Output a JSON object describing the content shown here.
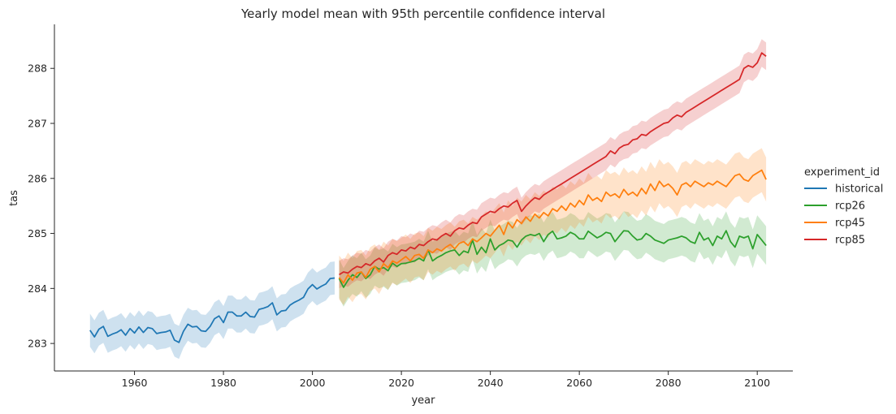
{
  "chart_data": {
    "type": "line",
    "title": "Yearly model mean with 95th percentile confidence interval",
    "xlabel": "year",
    "ylabel": "tas",
    "xlim": [
      1942,
      2108
    ],
    "ylim": [
      282.5,
      288.8
    ],
    "x_ticks": [
      1960,
      1980,
      2000,
      2020,
      2040,
      2060,
      2080,
      2100
    ],
    "y_ticks": [
      283,
      284,
      285,
      286,
      287,
      288
    ],
    "grid": false,
    "legend": {
      "title": "experiment_id",
      "placement": "right"
    },
    "confidence_band": "95% CI",
    "series": [
      {
        "name": "historical",
        "color": "#1f77b4",
        "x_start": 1950,
        "values": [
          283.24,
          283.12,
          283.26,
          283.31,
          283.13,
          283.17,
          283.2,
          283.25,
          283.15,
          283.27,
          283.19,
          283.3,
          283.2,
          283.29,
          283.27,
          283.18,
          283.2,
          283.21,
          283.24,
          283.06,
          283.02,
          283.22,
          283.35,
          283.3,
          283.31,
          283.23,
          283.22,
          283.31,
          283.45,
          283.5,
          283.38,
          283.57,
          283.57,
          283.5,
          283.5,
          283.57,
          283.49,
          283.48,
          283.62,
          283.64,
          283.67,
          283.74,
          283.52,
          283.59,
          283.6,
          283.7,
          283.75,
          283.79,
          283.84,
          283.99,
          284.07,
          283.99,
          284.04,
          284.08,
          284.18,
          284.19
        ],
        "ci_half_width": 0.3
      },
      {
        "name": "rcp26",
        "color": "#2ca02c",
        "x_start": 2006,
        "values": [
          284.18,
          284.02,
          284.15,
          284.25,
          284.2,
          284.3,
          284.18,
          284.25,
          284.4,
          284.35,
          284.38,
          284.32,
          284.46,
          284.4,
          284.45,
          284.46,
          284.48,
          284.5,
          284.55,
          284.5,
          284.7,
          284.5,
          284.56,
          284.6,
          284.65,
          284.68,
          284.7,
          284.6,
          284.68,
          284.65,
          284.88,
          284.62,
          284.75,
          284.65,
          284.9,
          284.7,
          284.78,
          284.82,
          284.88,
          284.86,
          284.75,
          284.88,
          284.95,
          284.98,
          284.96,
          285,
          284.85,
          284.98,
          285.04,
          284.9,
          284.92,
          284.95,
          285.02,
          284.98,
          284.9,
          284.9,
          285.04,
          284.98,
          284.92,
          284.96,
          285.02,
          285,
          284.85,
          284.95,
          285.05,
          285.04,
          284.95,
          284.88,
          284.9,
          285,
          284.95,
          284.88,
          284.85,
          284.82,
          284.88,
          284.9,
          284.92,
          284.95,
          284.92,
          284.85,
          284.82,
          285.02,
          284.88,
          284.92,
          284.78,
          284.95,
          284.9,
          285.05,
          284.85,
          284.75,
          284.95,
          284.92,
          284.95,
          284.72,
          284.98,
          284.88,
          284.78
        ],
        "ci_half_width": 0.35
      },
      {
        "name": "rcp45",
        "color": "#ff7f0e",
        "x_start": 2006,
        "values": [
          284.2,
          284.1,
          284.25,
          284.15,
          284.28,
          284.3,
          284.2,
          284.35,
          284.4,
          284.3,
          284.45,
          284.38,
          284.5,
          284.46,
          284.52,
          284.58,
          284.5,
          284.6,
          284.62,
          284.55,
          284.7,
          284.65,
          284.72,
          284.68,
          284.75,
          284.8,
          284.72,
          284.82,
          284.85,
          284.78,
          284.9,
          284.85,
          284.92,
          285,
          284.95,
          285.05,
          285.15,
          284.98,
          285.2,
          285.1,
          285.25,
          285.18,
          285.3,
          285.22,
          285.35,
          285.28,
          285.38,
          285.32,
          285.45,
          285.4,
          285.5,
          285.42,
          285.55,
          285.48,
          285.6,
          285.52,
          285.7,
          285.6,
          285.65,
          285.58,
          285.75,
          285.68,
          285.72,
          285.65,
          285.8,
          285.7,
          285.75,
          285.68,
          285.82,
          285.72,
          285.9,
          285.78,
          285.95,
          285.85,
          285.9,
          285.82,
          285.7,
          285.88,
          285.92,
          285.85,
          285.95,
          285.9,
          285.85,
          285.92,
          285.88,
          285.95,
          285.9,
          285.85,
          285.95,
          286.05,
          286.08,
          285.98,
          285.95,
          286.05,
          286.1,
          286.15,
          285.98
        ],
        "ci_half_width": 0.4
      },
      {
        "name": "rcp85",
        "color": "#d62728",
        "x_start": 2006,
        "values": [
          284.25,
          284.3,
          284.28,
          284.35,
          284.4,
          284.38,
          284.45,
          284.42,
          284.5,
          284.55,
          284.48,
          284.6,
          284.65,
          284.62,
          284.7,
          284.68,
          284.75,
          284.72,
          284.8,
          284.78,
          284.85,
          284.9,
          284.88,
          284.95,
          285,
          284.95,
          285.05,
          285.1,
          285.08,
          285.15,
          285.2,
          285.18,
          285.3,
          285.35,
          285.4,
          285.38,
          285.45,
          285.5,
          285.48,
          285.55,
          285.6,
          285.4,
          285.5,
          285.58,
          285.65,
          285.62,
          285.7,
          285.75,
          285.8,
          285.85,
          285.9,
          285.95,
          286,
          286.05,
          286.1,
          286.15,
          286.2,
          286.25,
          286.3,
          286.35,
          286.4,
          286.5,
          286.45,
          286.55,
          286.6,
          286.62,
          286.7,
          286.72,
          286.8,
          286.78,
          286.85,
          286.9,
          286.95,
          287,
          287.02,
          287.1,
          287.15,
          287.12,
          287.2,
          287.25,
          287.3,
          287.35,
          287.4,
          287.45,
          287.5,
          287.55,
          287.6,
          287.65,
          287.7,
          287.75,
          287.8,
          288,
          288.05,
          288.02,
          288.1,
          288.28,
          288.22
        ],
        "ci_half_width": 0.25
      }
    ]
  }
}
